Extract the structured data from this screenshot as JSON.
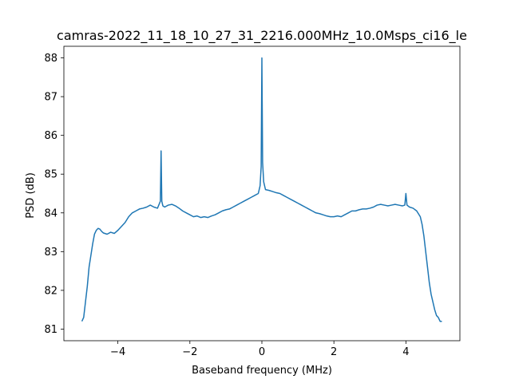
{
  "chart_data": {
    "type": "line",
    "title": "camras-2022_11_18_10_27_31_2216.000MHz_10.0Msps_ci16_le",
    "xlabel": "Baseband frequency (MHz)",
    "ylabel": "PSD (dB)",
    "xlim": [
      -5.5,
      5.5
    ],
    "ylim": [
      80.7,
      88.3
    ],
    "xticks": [
      -4,
      -2,
      0,
      2,
      4
    ],
    "xtick_labels": [
      "−4",
      "−2",
      "0",
      "2",
      "4"
    ],
    "yticks": [
      81,
      82,
      83,
      84,
      85,
      86,
      87,
      88
    ],
    "ytick_labels": [
      "81",
      "82",
      "83",
      "84",
      "85",
      "86",
      "87",
      "88"
    ],
    "grid": false,
    "line_color": "#1f77b4",
    "series": [
      {
        "x": [
          -5.0,
          -4.95,
          -4.9,
          -4.85,
          -4.8,
          -4.75,
          -4.7,
          -4.65,
          -4.6,
          -4.55,
          -4.5,
          -4.45,
          -4.4,
          -4.3,
          -4.2,
          -4.1,
          -4.0,
          -3.9,
          -3.8,
          -3.7,
          -3.6,
          -3.5,
          -3.4,
          -3.3,
          -3.2,
          -3.1,
          -3.0,
          -2.9,
          -2.82,
          -2.8,
          -2.78,
          -2.75,
          -2.7,
          -2.6,
          -2.5,
          -2.4,
          -2.3,
          -2.2,
          -2.1,
          -2.0,
          -1.9,
          -1.8,
          -1.7,
          -1.6,
          -1.5,
          -1.4,
          -1.3,
          -1.2,
          -1.1,
          -1.0,
          -0.9,
          -0.8,
          -0.7,
          -0.6,
          -0.5,
          -0.4,
          -0.3,
          -0.2,
          -0.1,
          -0.05,
          -0.02,
          0.0,
          0.02,
          0.05,
          0.1,
          0.2,
          0.3,
          0.4,
          0.5,
          0.6,
          0.7,
          0.8,
          0.9,
          1.0,
          1.1,
          1.2,
          1.3,
          1.4,
          1.5,
          1.6,
          1.7,
          1.8,
          1.9,
          2.0,
          2.1,
          2.2,
          2.3,
          2.4,
          2.5,
          2.6,
          2.7,
          2.8,
          2.9,
          3.0,
          3.1,
          3.2,
          3.3,
          3.4,
          3.5,
          3.6,
          3.7,
          3.8,
          3.9,
          3.97,
          4.0,
          4.03,
          4.1,
          4.2,
          4.3,
          4.4,
          4.45,
          4.5,
          4.55,
          4.6,
          4.65,
          4.7,
          4.75,
          4.8,
          4.85,
          4.9,
          4.95,
          5.0
        ],
        "y": [
          81.2,
          81.3,
          81.7,
          82.1,
          82.6,
          82.9,
          83.2,
          83.45,
          83.55,
          83.6,
          83.58,
          83.52,
          83.48,
          83.45,
          83.5,
          83.47,
          83.55,
          83.65,
          83.75,
          83.9,
          84.0,
          84.05,
          84.1,
          84.12,
          84.15,
          84.2,
          84.15,
          84.12,
          84.3,
          85.6,
          84.3,
          84.18,
          84.15,
          84.2,
          84.22,
          84.18,
          84.12,
          84.05,
          84.0,
          83.95,
          83.9,
          83.92,
          83.88,
          83.9,
          83.88,
          83.92,
          83.95,
          84.0,
          84.05,
          84.08,
          84.1,
          84.15,
          84.2,
          84.25,
          84.3,
          84.35,
          84.4,
          84.45,
          84.5,
          84.7,
          85.2,
          88.0,
          85.3,
          84.8,
          84.6,
          84.58,
          84.55,
          84.52,
          84.5,
          84.45,
          84.4,
          84.35,
          84.3,
          84.25,
          84.2,
          84.15,
          84.1,
          84.05,
          84.0,
          83.98,
          83.95,
          83.92,
          83.9,
          83.9,
          83.92,
          83.9,
          83.95,
          84.0,
          84.05,
          84.05,
          84.08,
          84.1,
          84.1,
          84.12,
          84.15,
          84.2,
          84.22,
          84.2,
          84.18,
          84.2,
          84.22,
          84.2,
          84.18,
          84.2,
          84.5,
          84.2,
          84.15,
          84.12,
          84.05,
          83.9,
          83.7,
          83.4,
          83.0,
          82.6,
          82.2,
          81.9,
          81.7,
          81.5,
          81.35,
          81.3,
          81.2,
          81.2
        ]
      }
    ]
  }
}
